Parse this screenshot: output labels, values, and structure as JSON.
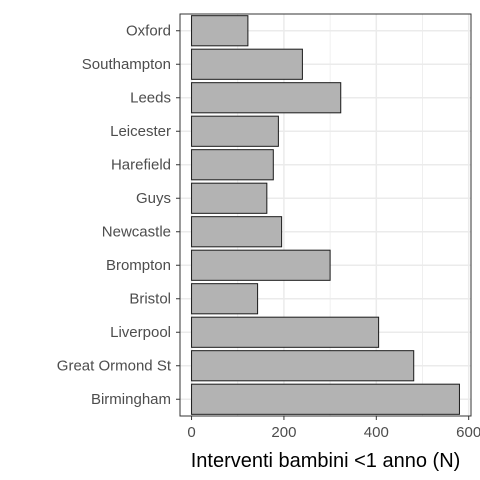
{
  "chart_data": {
    "type": "bar",
    "orientation": "horizontal",
    "categories": [
      "Oxford",
      "Southampton",
      "Leeds",
      "Leicester",
      "Harefield",
      "Guys",
      "Newcastle",
      "Brompton",
      "Bristol",
      "Liverpool",
      "Great Ormond St",
      "Birmingham"
    ],
    "values": [
      122,
      240,
      323,
      188,
      177,
      163,
      195,
      300,
      143,
      405,
      481,
      580
    ],
    "xlabel": "Interventi bambini <1 anno (N)",
    "ylabel": "",
    "xlim": [
      -25,
      605
    ],
    "x_ticks": [
      "0",
      "200",
      "400",
      "600"
    ],
    "x_tick_values": [
      0,
      200,
      400,
      600
    ],
    "grid": true,
    "bar_fill": "#b3b3b3",
    "bar_stroke": "#1a1a1a",
    "grid_color": "#ebebeb",
    "panel_border": "#333333"
  }
}
